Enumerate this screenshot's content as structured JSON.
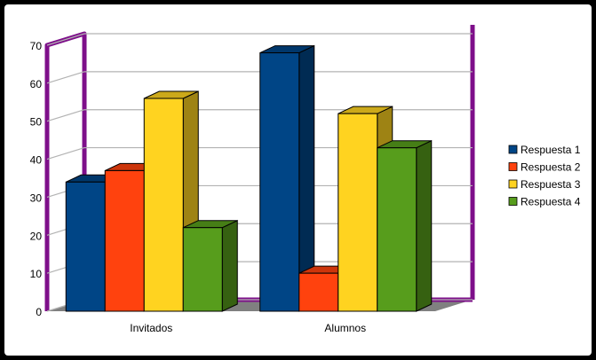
{
  "chart_data": {
    "type": "bar",
    "categories": [
      "Invitados",
      "Alumnos"
    ],
    "series": [
      {
        "name": "Respuesta 1",
        "values": [
          34,
          68
        ],
        "color": "#004586"
      },
      {
        "name": "Respuesta 2",
        "values": [
          37,
          10
        ],
        "color": "#ff420e"
      },
      {
        "name": "Respuesta 3",
        "values": [
          56,
          52
        ],
        "color": "#ffd320"
      },
      {
        "name": "Respuesta 4",
        "values": [
          22,
          43
        ],
        "color": "#579d1c"
      }
    ],
    "y_ticks": [
      "0",
      "10",
      "20",
      "30",
      "40",
      "50",
      "60",
      "70"
    ],
    "ylim": [
      0,
      70
    ],
    "grid": true,
    "legend_position": "right",
    "wall_color": "#7e0f8a",
    "floor_color": "#808080"
  }
}
